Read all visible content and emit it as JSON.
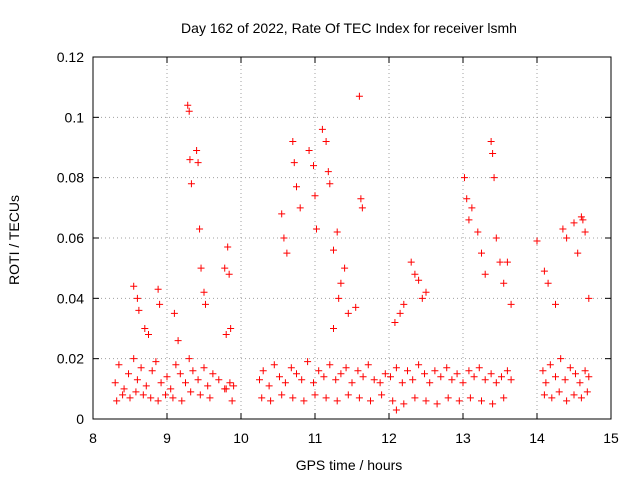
{
  "chart_data": {
    "type": "scatter",
    "title": "Day 162 of 2022, Rate Of TEC Index for receiver lsmh",
    "xlabel": "GPS time / hours",
    "ylabel": "ROTI / TECUs",
    "xlim": [
      8,
      15
    ],
    "ylim": [
      0,
      0.12
    ],
    "xticks": [
      "8",
      "9",
      "10",
      "11",
      "12",
      "13",
      "14",
      "15"
    ],
    "yticks": [
      "0",
      "0.02",
      "0.04",
      "0.06",
      "0.08",
      "0.1",
      "0.12"
    ],
    "grid": true,
    "marker": "+",
    "color": "#ff0000",
    "series": [
      {
        "x": [
          8.3,
          8.35,
          8.42,
          8.48,
          8.55,
          8.6,
          8.65,
          8.72,
          8.8,
          8.85,
          8.92,
          9.0,
          9.05,
          9.12,
          9.18,
          9.25,
          9.3,
          9.35,
          9.42,
          9.5,
          9.55,
          9.62,
          9.7,
          9.78,
          9.85,
          9.9,
          8.32,
          8.4,
          8.5,
          8.58,
          8.68,
          8.78,
          8.88,
          8.98,
          9.08,
          9.2,
          9.32,
          9.45,
          9.58,
          9.8,
          9.88,
          8.55,
          8.6,
          8.62,
          8.88,
          8.9,
          8.7,
          8.75,
          9.1,
          9.15,
          9.28,
          9.3,
          9.31,
          9.33,
          9.4,
          9.42,
          9.44,
          9.46,
          9.5,
          9.52,
          9.78,
          9.82,
          9.84,
          9.86,
          9.8,
          10.25,
          10.3,
          10.38,
          10.45,
          10.52,
          10.6,
          10.68,
          10.75,
          10.82,
          10.9,
          10.98,
          11.05,
          11.12,
          11.2,
          11.28,
          11.35,
          11.42,
          11.5,
          11.58,
          11.65,
          11.72,
          11.8,
          11.88,
          11.95,
          10.28,
          10.4,
          10.55,
          10.7,
          10.85,
          11.0,
          11.15,
          11.3,
          11.45,
          11.6,
          11.75,
          11.9,
          10.55,
          10.58,
          10.62,
          10.7,
          10.72,
          10.75,
          10.8,
          10.92,
          10.98,
          11.0,
          11.02,
          11.1,
          11.15,
          11.18,
          11.2,
          11.25,
          11.3,
          11.35,
          11.4,
          11.45,
          11.55,
          11.62,
          11.64,
          11.6,
          11.32,
          11.25,
          12.02,
          12.1,
          12.18,
          12.25,
          12.32,
          12.4,
          12.48,
          12.55,
          12.62,
          12.7,
          12.78,
          12.85,
          12.92,
          13.0,
          13.08,
          13.15,
          13.22,
          13.3,
          13.38,
          13.45,
          13.52,
          13.6,
          13.65,
          12.05,
          12.2,
          12.35,
          12.5,
          12.65,
          12.8,
          12.95,
          13.1,
          13.25,
          13.4,
          13.55,
          12.3,
          12.35,
          12.4,
          12.45,
          12.5,
          12.2,
          12.15,
          12.08,
          13.02,
          13.05,
          13.08,
          13.12,
          13.2,
          13.25,
          13.3,
          13.38,
          13.4,
          13.42,
          13.45,
          13.5,
          13.55,
          13.6,
          13.65,
          12.1,
          14.08,
          14.12,
          14.18,
          14.25,
          14.32,
          14.38,
          14.45,
          14.52,
          14.58,
          14.65,
          14.7,
          14.1,
          14.2,
          14.3,
          14.4,
          14.5,
          14.6,
          14.68,
          14.0,
          14.1,
          14.15,
          14.25,
          14.35,
          14.4,
          14.5,
          14.55,
          14.6,
          14.62,
          14.65,
          14.7
        ],
        "y": [
          0.012,
          0.018,
          0.01,
          0.015,
          0.02,
          0.013,
          0.017,
          0.011,
          0.016,
          0.019,
          0.012,
          0.014,
          0.01,
          0.018,
          0.015,
          0.012,
          0.02,
          0.016,
          0.013,
          0.017,
          0.011,
          0.015,
          0.013,
          0.01,
          0.012,
          0.011,
          0.006,
          0.008,
          0.007,
          0.009,
          0.008,
          0.007,
          0.006,
          0.008,
          0.007,
          0.006,
          0.009,
          0.008,
          0.007,
          0.01,
          0.006,
          0.044,
          0.04,
          0.036,
          0.043,
          0.038,
          0.03,
          0.028,
          0.035,
          0.026,
          0.104,
          0.102,
          0.086,
          0.078,
          0.089,
          0.085,
          0.063,
          0.05,
          0.042,
          0.038,
          0.05,
          0.057,
          0.048,
          0.03,
          0.028,
          0.013,
          0.016,
          0.011,
          0.018,
          0.014,
          0.012,
          0.017,
          0.015,
          0.013,
          0.019,
          0.012,
          0.016,
          0.014,
          0.018,
          0.013,
          0.015,
          0.017,
          0.012,
          0.016,
          0.014,
          0.018,
          0.013,
          0.012,
          0.015,
          0.007,
          0.006,
          0.008,
          0.007,
          0.006,
          0.008,
          0.007,
          0.006,
          0.008,
          0.007,
          0.006,
          0.008,
          0.068,
          0.06,
          0.055,
          0.092,
          0.085,
          0.077,
          0.07,
          0.089,
          0.084,
          0.074,
          0.063,
          0.096,
          0.092,
          0.082,
          0.078,
          0.056,
          0.062,
          0.045,
          0.05,
          0.035,
          0.037,
          0.073,
          0.07,
          0.107,
          0.04,
          0.03,
          0.014,
          0.017,
          0.012,
          0.016,
          0.013,
          0.018,
          0.015,
          0.012,
          0.016,
          0.014,
          0.017,
          0.013,
          0.015,
          0.012,
          0.016,
          0.014,
          0.017,
          0.013,
          0.015,
          0.012,
          0.014,
          0.016,
          0.013,
          0.006,
          0.005,
          0.007,
          0.006,
          0.005,
          0.007,
          0.006,
          0.007,
          0.006,
          0.005,
          0.007,
          0.052,
          0.048,
          0.046,
          0.04,
          0.042,
          0.038,
          0.035,
          0.032,
          0.08,
          0.073,
          0.066,
          0.07,
          0.062,
          0.055,
          0.048,
          0.092,
          0.088,
          0.08,
          0.06,
          0.052,
          0.045,
          0.052,
          0.038,
          0.003,
          0.016,
          0.012,
          0.018,
          0.014,
          0.02,
          0.013,
          0.017,
          0.015,
          0.012,
          0.016,
          0.014,
          0.008,
          0.007,
          0.009,
          0.006,
          0.008,
          0.007,
          0.009,
          0.059,
          0.049,
          0.045,
          0.038,
          0.063,
          0.06,
          0.065,
          0.055,
          0.067,
          0.066,
          0.062,
          0.04
        ]
      }
    ]
  }
}
